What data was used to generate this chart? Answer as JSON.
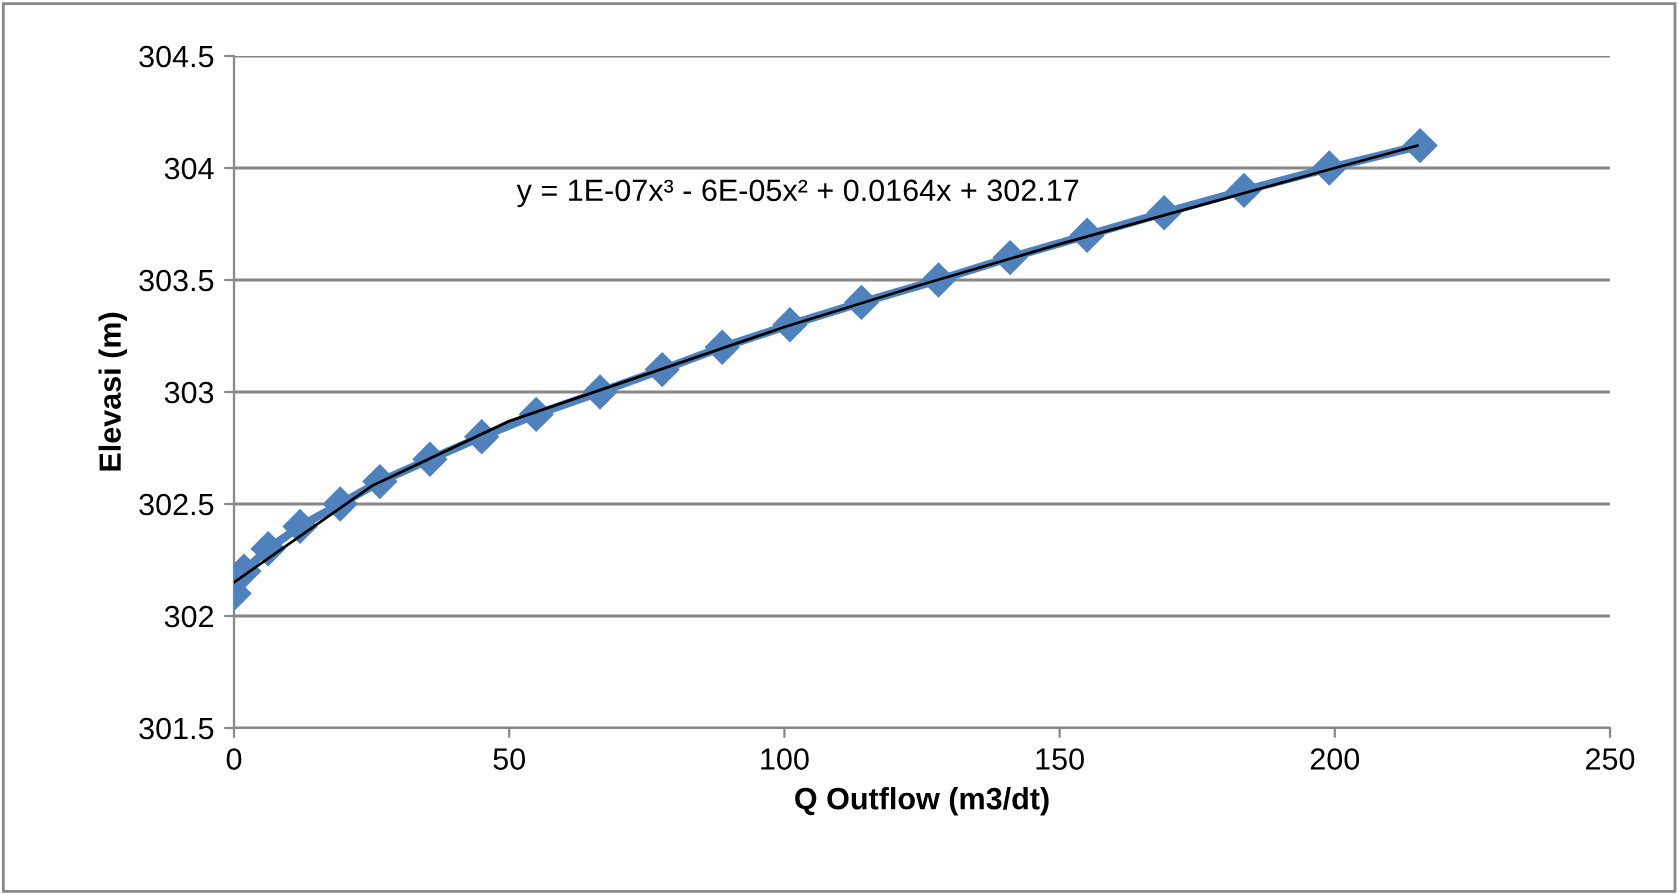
{
  "chart_data": {
    "type": "line",
    "xlabel": "Q Outflow (m3/dt)",
    "ylabel": "Elevasi (m)",
    "annotations": [
      "y = 1E-07x³ - 6E-05x² + 0.0164x + 302.17"
    ],
    "series": [
      {
        "color": "#4f81bd",
        "marker": "diamond",
        "x": [
          0,
          1.8,
          6.2,
          12,
          19.3,
          26.5,
          35.6,
          45,
          54.9,
          66.5,
          77.8,
          88.7,
          101,
          114,
          128,
          141,
          155,
          169,
          183.5,
          199,
          215.5
        ],
        "values": [
          302.1,
          302.2,
          302.3,
          302.4,
          302.5,
          302.6,
          302.7,
          302.8,
          302.9,
          303.0,
          303.1,
          303.2,
          303.3,
          303.4,
          303.5,
          303.6,
          303.7,
          303.8,
          303.9,
          304.0,
          304.1
        ]
      },
      {
        "type": "line",
        "color": "#000000",
        "marker": "none",
        "x": [
          0,
          25,
          50,
          75,
          100,
          125,
          150,
          175,
          200,
          215
        ],
        "values": [
          302.15,
          302.58,
          302.87,
          303.08,
          303.29,
          303.48,
          303.66,
          303.83,
          304.0,
          304.1
        ]
      }
    ],
    "xlim": [
      0,
      250
    ],
    "xticks": [
      0,
      50,
      100,
      150,
      200,
      250
    ],
    "ylim": [
      301.5,
      304.5
    ],
    "yticks": [
      301.5,
      302,
      302.5,
      303,
      303.5,
      304,
      304.5
    ],
    "grid": "y",
    "legend": false
  }
}
